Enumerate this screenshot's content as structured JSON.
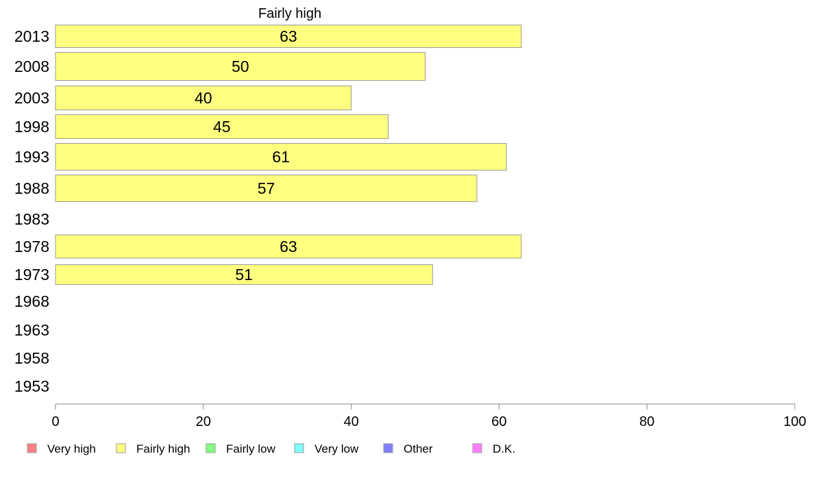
{
  "chart_data": {
    "type": "bar",
    "orientation": "horizontal",
    "title": "Fairly high",
    "categories": [
      "2013",
      "2008",
      "2003",
      "1998",
      "1993",
      "1988",
      "1983",
      "1978",
      "1973",
      "1968",
      "1963",
      "1958",
      "1953"
    ],
    "series": [
      {
        "name": "Fairly high",
        "values": [
          63,
          50,
          40,
          45,
          61,
          57,
          null,
          63,
          51,
          null,
          null,
          null,
          null
        ]
      }
    ],
    "data_labels": [
      "63",
      "50",
      "40",
      "45",
      "61",
      "57",
      "",
      "63",
      "51",
      "",
      "",
      "",
      ""
    ],
    "xlim": [
      0,
      100
    ],
    "xticks": [
      "0",
      "20",
      "40",
      "60",
      "80",
      "100"
    ],
    "xtick_values": [
      0,
      20,
      40,
      60,
      80,
      100
    ],
    "grid": false,
    "legend_position": "bottom",
    "legend": [
      {
        "label": "Very high",
        "color": "#ff8080"
      },
      {
        "label": "Fairly high",
        "color": "#ffff80"
      },
      {
        "label": "Fairly low",
        "color": "#80ff80"
      },
      {
        "label": "Very low",
        "color": "#80ffff"
      },
      {
        "label": "Other",
        "color": "#8080ff"
      },
      {
        "label": "D.K.",
        "color": "#ff80ff"
      }
    ],
    "bar_color": "#ffff80",
    "bar_border_color": "#999999"
  }
}
